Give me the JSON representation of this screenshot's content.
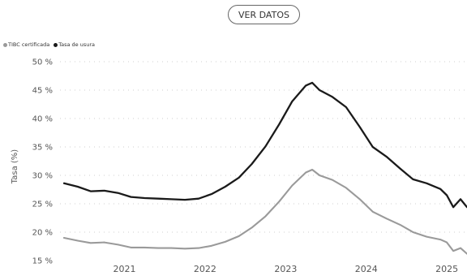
{
  "toolbar": {
    "ver_datos_label": "VER DATOS"
  },
  "colors": {
    "tibc": "#9a9a9a",
    "usura": "#1a1a1a",
    "grid": "#cfcfcf",
    "text": "#555555"
  },
  "chart_data": {
    "type": "line",
    "ylabel": "Tasa (%)",
    "ylim": [
      15,
      50
    ],
    "yticks": [
      15,
      20,
      25,
      30,
      35,
      40,
      45,
      50
    ],
    "ytick_labels": [
      "15 %",
      "20 %",
      "25 %",
      "30 %",
      "35 %",
      "40 %",
      "45 %",
      "50 %"
    ],
    "xlim": [
      2020.2,
      2025.25
    ],
    "xticks": [
      2021,
      2022,
      2023,
      2024,
      2025
    ],
    "xtick_labels": [
      "2021",
      "2022",
      "2023",
      "2024",
      "2025"
    ],
    "grid": "horizontal dotted",
    "legend_position": "top-left",
    "series": [
      {
        "name": "TIBC certificada",
        "color_key": "tibc",
        "x": [
          2020.25,
          2020.42,
          2020.58,
          2020.75,
          2020.92,
          2021.08,
          2021.25,
          2021.42,
          2021.58,
          2021.75,
          2021.92,
          2022.08,
          2022.25,
          2022.42,
          2022.58,
          2022.75,
          2022.92,
          2023.08,
          2023.25,
          2023.33,
          2023.42,
          2023.58,
          2023.75,
          2023.92,
          2024.08,
          2024.25,
          2024.42,
          2024.58,
          2024.75,
          2024.92,
          2025.0,
          2025.08,
          2025.17,
          2025.25
        ],
        "y": [
          19.0,
          18.5,
          18.1,
          18.2,
          17.8,
          17.3,
          17.3,
          17.2,
          17.2,
          17.1,
          17.2,
          17.6,
          18.3,
          19.3,
          20.8,
          22.8,
          25.4,
          28.2,
          30.5,
          31.0,
          30.0,
          29.2,
          27.8,
          25.8,
          23.6,
          22.4,
          21.3,
          20.0,
          19.2,
          18.7,
          18.2,
          16.7,
          17.2,
          16.2
        ]
      },
      {
        "name": "Tasa de usura",
        "color_key": "usura",
        "x": [
          2020.25,
          2020.42,
          2020.58,
          2020.75,
          2020.92,
          2021.08,
          2021.25,
          2021.42,
          2021.58,
          2021.75,
          2021.92,
          2022.08,
          2022.25,
          2022.42,
          2022.58,
          2022.75,
          2022.92,
          2023.08,
          2023.25,
          2023.33,
          2023.42,
          2023.58,
          2023.75,
          2023.92,
          2024.08,
          2024.25,
          2024.42,
          2024.58,
          2024.75,
          2024.92,
          2025.0,
          2025.08,
          2025.17,
          2025.25
        ],
        "y": [
          28.6,
          28.0,
          27.2,
          27.3,
          26.9,
          26.2,
          26.0,
          25.9,
          25.8,
          25.7,
          25.9,
          26.7,
          28.0,
          29.6,
          32.0,
          35.1,
          39.0,
          43.0,
          45.8,
          46.3,
          45.0,
          43.8,
          42.0,
          38.5,
          35.0,
          33.3,
          31.2,
          29.3,
          28.6,
          27.6,
          26.5,
          24.4,
          25.8,
          24.4
        ]
      }
    ]
  }
}
